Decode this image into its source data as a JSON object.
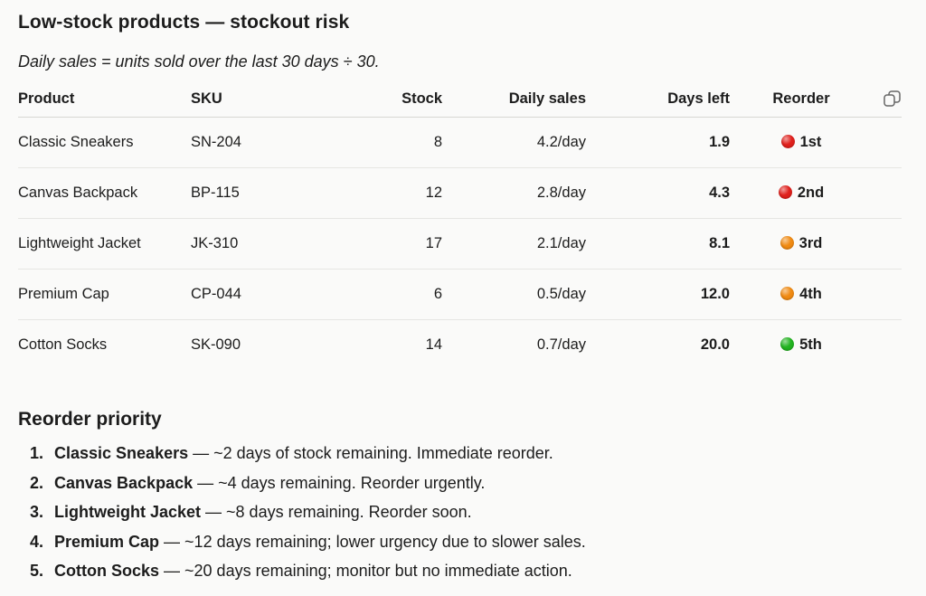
{
  "page": {
    "title": "Low-stock products — stockout risk",
    "note": "Daily sales = units sold over the last 30 days ÷ 30."
  },
  "table": {
    "headers": {
      "product": "Product",
      "sku": "SKU",
      "stock": "Stock",
      "daily_sales": "Daily sales",
      "days_left": "Days left",
      "reorder": "Reorder"
    },
    "copy_icon": "copy-icon",
    "rows": [
      {
        "product": "Classic Sneakers",
        "sku": "SN-204",
        "stock": "8",
        "daily_sales": "4.2/day",
        "days_left": "1.9",
        "reorder": "1st",
        "indicator": "red-circle",
        "indicator_color": "#e0201c"
      },
      {
        "product": "Canvas Backpack",
        "sku": "BP-115",
        "stock": "12",
        "daily_sales": "2.8/day",
        "days_left": "4.3",
        "reorder": "2nd",
        "indicator": "red-circle",
        "indicator_color": "#e0201c"
      },
      {
        "product": "Lightweight Jacket",
        "sku": "JK-310",
        "stock": "17",
        "daily_sales": "2.1/day",
        "days_left": "8.1",
        "reorder": "3rd",
        "indicator": "orange-circle",
        "indicator_color": "#f08a12"
      },
      {
        "product": "Premium Cap",
        "sku": "CP-044",
        "stock": "6",
        "daily_sales": "0.5/day",
        "days_left": "12.0",
        "reorder": "4th",
        "indicator": "orange-circle",
        "indicator_color": "#f08a12"
      },
      {
        "product": "Cotton Socks",
        "sku": "SK-090",
        "stock": "14",
        "daily_sales": "0.7/day",
        "days_left": "20.0",
        "reorder": "5th",
        "indicator": "green-circle",
        "indicator_color": "#22b320"
      }
    ]
  },
  "priority": {
    "title": "Reorder priority",
    "items": [
      {
        "number": "1.",
        "name": "Classic Sneakers",
        "text": " — ~2 days of stock remaining. Immediate reorder."
      },
      {
        "number": "2.",
        "name": "Canvas Backpack",
        "text": " — ~4 days remaining. Reorder urgently."
      },
      {
        "number": "3.",
        "name": "Lightweight Jacket",
        "text": " — ~8 days remaining. Reorder soon."
      },
      {
        "number": "4.",
        "name": "Premium Cap",
        "text": " — ~12 days remaining; lower urgency due to slower sales."
      },
      {
        "number": "5.",
        "name": "Cotton Socks",
        "text": " — ~20 days remaining; monitor but no immediate action."
      }
    ]
  }
}
